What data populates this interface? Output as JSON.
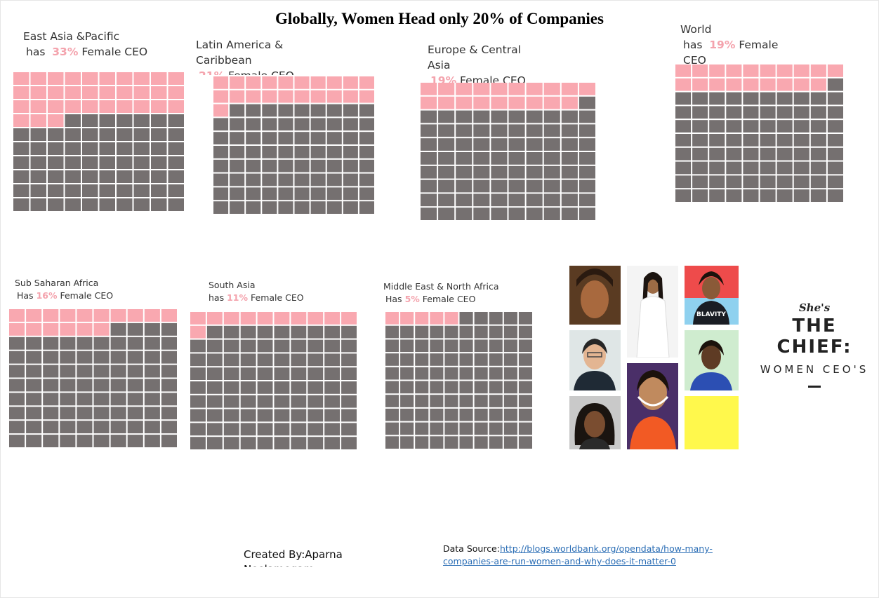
{
  "dashboard": {
    "title": "Globally, Women Head only 20% of Companies",
    "credit": "Created By:Aparna Neelamegam",
    "source_label": "Data Source:",
    "source_url": "http://blogs.worldbank.org/opendata/how-many-companies-are-run-women-and-why-does-it-matter-0"
  },
  "panels": [
    {
      "l1": "East Asia &Pacific",
      "has": "has",
      "pct": "33%",
      "tail": "Female CEO"
    },
    {
      "l1": "Latin America & Caribbean",
      "has": "",
      "pct": "21%",
      "tail": "Female CEO"
    },
    {
      "l1": "Europe & Central Asia",
      "has": "",
      "pct": "19%",
      "tail": "Female CEO"
    },
    {
      "l1": "World",
      "has": "has",
      "pct": "19%",
      "tail": "Female CEO"
    },
    {
      "l1": "Sub Saharan Africa",
      "has": "Has",
      "pct": "16%",
      "tail": "Female CEO"
    },
    {
      "l1": "South Asia",
      "has": "has",
      "pct": "11%",
      "tail": "Female CEO"
    },
    {
      "l1": "Middle East & North Africa",
      "has": "Has",
      "pct": "5%",
      "tail": "Female CEO"
    }
  ],
  "chart_data": [
    {
      "type": "waffle",
      "category": "East Asia &Pacific",
      "value": 33,
      "total": 100,
      "unit": "%"
    },
    {
      "type": "waffle",
      "category": "Latin America & Caribbean",
      "value": 21,
      "total": 100,
      "unit": "%"
    },
    {
      "type": "waffle",
      "category": "Europe & Central Asia",
      "value": 19,
      "total": 100,
      "unit": "%"
    },
    {
      "type": "waffle",
      "category": "World",
      "value": 19,
      "total": 100,
      "unit": "%"
    },
    {
      "type": "waffle",
      "category": "Sub Saharan Africa",
      "value": 16,
      "total": 100,
      "unit": "%"
    },
    {
      "type": "waffle",
      "category": "South Asia",
      "value": 11,
      "total": 100,
      "unit": "%"
    },
    {
      "type": "waffle",
      "category": "Middle East & North Africa",
      "value": 5,
      "total": 100,
      "unit": "%"
    }
  ],
  "colors": {
    "female": "#f9a8b0",
    "other": "#757070",
    "pct_text": "#f4a3ad",
    "link": "#2a6db5"
  },
  "branding": {
    "shes": "She's",
    "chief": "THE CHIEF:",
    "sub": "WOMEN CEO'S",
    "tshirt_text": "BLAVITY"
  }
}
